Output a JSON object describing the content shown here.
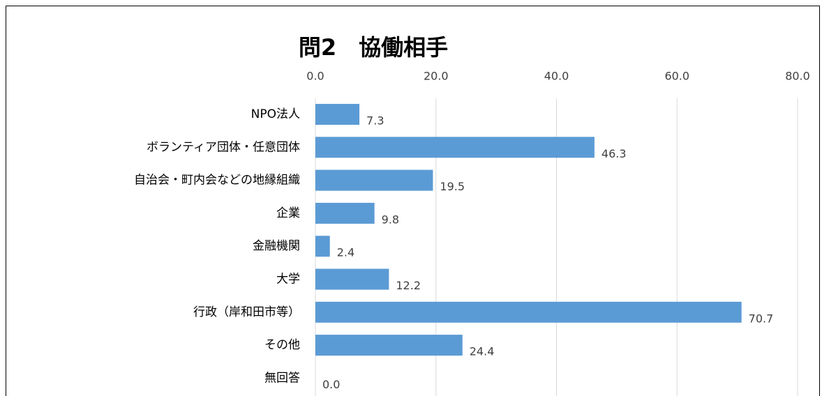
{
  "chart_data": {
    "type": "bar",
    "orientation": "horizontal",
    "title": "問2　協働相手",
    "categories": [
      "NPO法人",
      "ボランティア団体・任意団体",
      "自治会・町内会などの地縁組織",
      "企業",
      "金融機関",
      "大学",
      "行政（岸和田市等）",
      "その他",
      "無回答"
    ],
    "values": [
      7.3,
      46.3,
      19.5,
      9.8,
      2.4,
      12.2,
      70.7,
      24.4,
      0
    ],
    "value_labels": [
      "7.3",
      "46.3",
      "19.5",
      "9.8",
      "2.4",
      "12.2",
      "70.7",
      "24.4",
      "0.0"
    ],
    "color": "#5b9bd5",
    "xlim": [
      0,
      80
    ],
    "xticks": [
      {
        "value": 0,
        "label": "0.0"
      },
      {
        "value": 20,
        "label": "20.0"
      },
      {
        "value": 40,
        "label": "40.0"
      },
      {
        "value": 60,
        "label": "60.0"
      },
      {
        "value": 80,
        "label": "80.0"
      }
    ],
    "grid": true
  }
}
